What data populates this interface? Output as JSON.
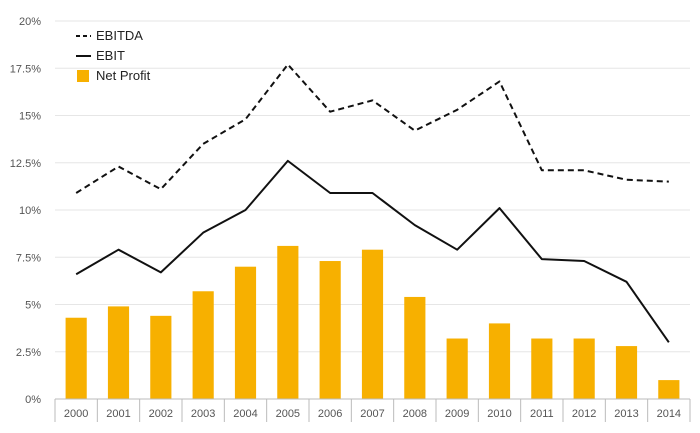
{
  "chart_data": {
    "type": "bar",
    "title": "",
    "xlabel": "",
    "ylabel": "",
    "categories": [
      "2000",
      "2001",
      "2002",
      "2003",
      "2004",
      "2005",
      "2006",
      "2007",
      "2008",
      "2009",
      "2010",
      "2011",
      "2012",
      "2013",
      "2014"
    ],
    "ylim": [
      0,
      20
    ],
    "yticks": [
      "0%",
      "2.5%",
      "5%",
      "7.5%",
      "10%",
      "12.5%",
      "15%",
      "17.5%",
      "20%"
    ],
    "grid": true,
    "legend_position": "top-left",
    "series": [
      {
        "name": "EBITDA",
        "type": "line",
        "style": "dashed",
        "color": "#111111",
        "values": [
          10.9,
          12.3,
          11.1,
          13.5,
          14.8,
          17.7,
          15.2,
          15.8,
          14.2,
          15.3,
          16.8,
          12.1,
          12.1,
          11.6,
          11.5
        ]
      },
      {
        "name": "EBIT",
        "type": "line",
        "style": "solid",
        "color": "#111111",
        "values": [
          6.6,
          7.9,
          6.7,
          8.8,
          10.0,
          12.6,
          10.9,
          10.9,
          9.2,
          7.9,
          10.1,
          7.4,
          7.3,
          6.2,
          3.0
        ]
      },
      {
        "name": "Net Profit",
        "type": "bar",
        "color": "#F7B000",
        "values": [
          4.3,
          4.9,
          4.4,
          5.7,
          7.0,
          8.1,
          7.3,
          7.9,
          5.4,
          3.2,
          4.0,
          3.2,
          3.2,
          2.8,
          1.0
        ]
      }
    ]
  },
  "colors": {
    "grid": "#e6e6e6",
    "axis": "#bbbbbb",
    "text": "#555555"
  }
}
